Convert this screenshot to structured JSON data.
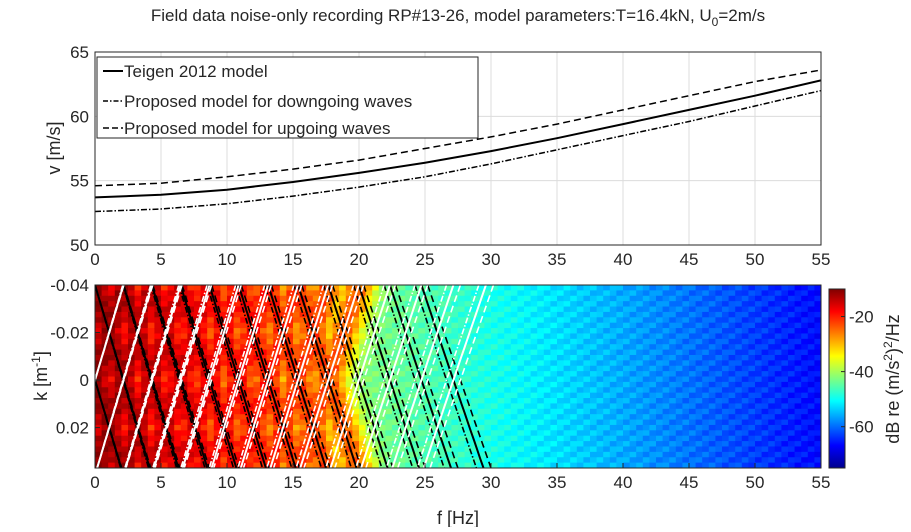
{
  "figure": {
    "title_main": "Field data noise-only recording RP#13-26, model parameters:T=16.4kN, U",
    "title_sub": "0",
    "title_end": "=2m/s"
  },
  "chart_data": [
    {
      "type": "line",
      "xlabel": "",
      "ylabel": "v [m/s]",
      "xlim": [
        0,
        55
      ],
      "ylim": [
        50,
        65
      ],
      "xticks": [
        "0",
        "5",
        "10",
        "15",
        "20",
        "25",
        "30",
        "35",
        "40",
        "45",
        "50",
        "55"
      ],
      "yticks": [
        "50",
        "55",
        "60",
        "65"
      ],
      "grid": true,
      "legend_position": "top-left",
      "x": [
        0,
        5,
        10,
        15,
        20,
        25,
        30,
        35,
        40,
        45,
        50,
        55
      ],
      "series": [
        {
          "name": "Teigen 2012 model",
          "style": "solid",
          "values": [
            53.7,
            53.9,
            54.3,
            54.9,
            55.6,
            56.4,
            57.3,
            58.3,
            59.4,
            60.5,
            61.6,
            62.8
          ]
        },
        {
          "name": "Proposed model for downgoing waves",
          "style": "dash-dot",
          "values": [
            52.6,
            52.8,
            53.2,
            53.8,
            54.5,
            55.3,
            56.3,
            57.4,
            58.5,
            59.6,
            60.8,
            62.0
          ]
        },
        {
          "name": "Proposed model for upgoing waves",
          "style": "dashed",
          "values": [
            54.6,
            54.8,
            55.3,
            55.9,
            56.6,
            57.5,
            58.4,
            59.4,
            60.5,
            61.6,
            62.7,
            63.6
          ]
        }
      ]
    },
    {
      "type": "heatmap",
      "xlabel": "f [Hz]",
      "ylabel_main": "k [m",
      "ylabel_sup": "-1",
      "ylabel_end": "]",
      "xlim": [
        0,
        55
      ],
      "ylim": [
        -0.04,
        0.037
      ],
      "y_reversed": true,
      "xticks": [
        "0",
        "5",
        "10",
        "15",
        "20",
        "25",
        "30",
        "35",
        "40",
        "45",
        "50",
        "55"
      ],
      "yticks": [
        "-0.04",
        "-0.02",
        "0",
        "0.02"
      ],
      "colorbar": {
        "label_main": "dB re (m/s",
        "label_sup1": "2",
        "label_mid": ")",
        "label_sup2": "2",
        "label_end": "/Hz",
        "range": [
          -75,
          -10
        ],
        "ticks": [
          "-20",
          "-40",
          "-60"
        ],
        "colormap": "jet"
      },
      "overlay_models": [
        "Teigen 2012 model",
        "Proposed model for downgoing waves",
        "Proposed model for upgoing waves"
      ]
    }
  ]
}
